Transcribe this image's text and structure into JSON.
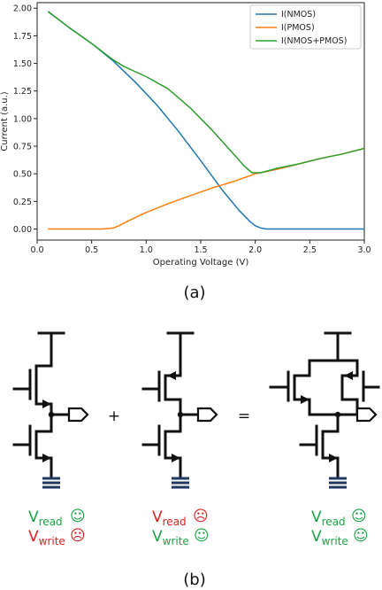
{
  "chart_data": {
    "type": "line",
    "xlabel": "Operating Voltage (V)",
    "ylabel": "Current (a.u.)",
    "xlim": [
      0.0,
      3.0
    ],
    "ylim": [
      -0.1,
      2.05
    ],
    "xticks": [
      "0.0",
      "0.5",
      "1.0",
      "1.5",
      "2.0",
      "2.5",
      "3.0"
    ],
    "yticks": [
      "0.00",
      "0.25",
      "0.50",
      "0.75",
      "1.00",
      "1.25",
      "1.50",
      "1.75",
      "2.00"
    ],
    "legend_position": "top-right",
    "series": [
      {
        "name": "I(NMOS)",
        "color": "#1f77b4",
        "x": [
          0.1,
          0.3,
          0.5,
          0.7,
          0.9,
          1.1,
          1.3,
          1.5,
          1.7,
          1.85,
          1.95,
          2.0,
          2.05,
          2.1,
          2.5,
          3.0
        ],
        "y": [
          1.97,
          1.82,
          1.68,
          1.52,
          1.33,
          1.12,
          0.88,
          0.62,
          0.35,
          0.17,
          0.07,
          0.03,
          0.01,
          0.0,
          0.0,
          0.0
        ]
      },
      {
        "name": "I(PMOS)",
        "color": "#ff7f0e",
        "x": [
          0.1,
          0.4,
          0.6,
          0.7,
          0.75,
          0.85,
          1.0,
          1.2,
          1.4,
          1.6,
          1.8,
          2.0,
          2.2,
          2.4,
          2.6,
          2.8,
          3.0
        ],
        "y": [
          0.0,
          0.0,
          0.0,
          0.01,
          0.03,
          0.08,
          0.15,
          0.23,
          0.3,
          0.37,
          0.43,
          0.5,
          0.54,
          0.59,
          0.64,
          0.68,
          0.73
        ]
      },
      {
        "name": "I(NMOS+PMOS)",
        "color": "#2ca02c",
        "x": [
          0.1,
          0.3,
          0.5,
          0.7,
          0.8,
          1.0,
          1.2,
          1.4,
          1.6,
          1.8,
          1.9,
          1.97,
          2.05,
          2.2,
          2.4,
          2.6,
          2.8,
          3.0
        ],
        "y": [
          1.97,
          1.82,
          1.68,
          1.53,
          1.47,
          1.38,
          1.27,
          1.1,
          0.9,
          0.68,
          0.57,
          0.51,
          0.51,
          0.55,
          0.59,
          0.64,
          0.68,
          0.73
        ]
      }
    ]
  },
  "captions": {
    "a": "(a)",
    "b": "(b)"
  },
  "operators": {
    "plus": "+",
    "equals": "="
  },
  "colors": {
    "good": "#1ca348",
    "bad": "#e02020",
    "wire": "#111111",
    "ground": "#1f3864"
  },
  "labels": {
    "left": {
      "read_main": "V",
      "read_sub": "read",
      "read_icon": "☺",
      "read_ok": true,
      "write_main": "V",
      "write_sub": "write",
      "write_icon": "☹",
      "write_ok": false
    },
    "middle": {
      "read_main": "V",
      "read_sub": "read",
      "read_icon": "☹",
      "read_ok": false,
      "write_main": "V",
      "write_sub": "write",
      "write_icon": "☺",
      "write_ok": true
    },
    "right": {
      "read_main": "V",
      "read_sub": "read",
      "read_icon": "☺",
      "read_ok": true,
      "write_main": "V",
      "write_sub": "write",
      "write_icon": "☺",
      "write_ok": true
    }
  }
}
